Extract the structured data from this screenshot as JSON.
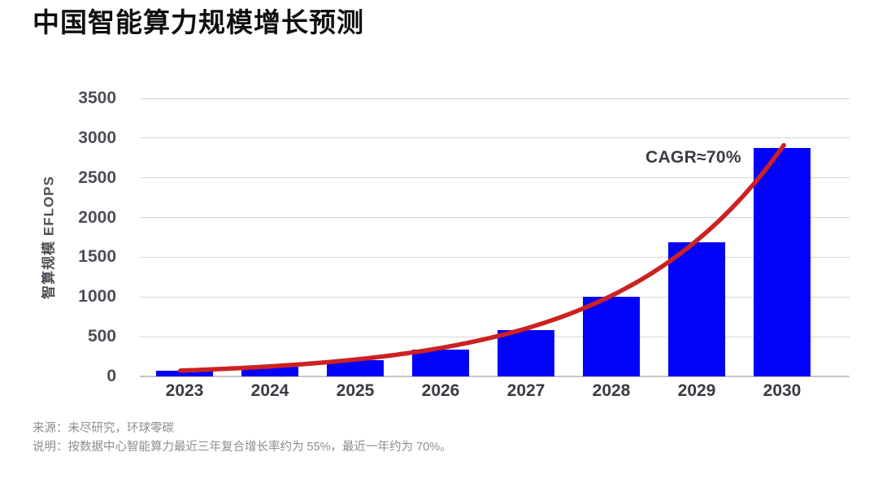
{
  "title": "中国智能算力规模增长预测",
  "chart_data": {
    "type": "bar",
    "categories": [
      "2023",
      "2024",
      "2025",
      "2026",
      "2027",
      "2028",
      "2029",
      "2030"
    ],
    "values": [
      70,
      120,
      200,
      340,
      580,
      1000,
      1690,
      2880
    ],
    "title": "中国智能算力规模增长预测",
    "xlabel": "",
    "ylabel": "智算规模 EFLOPS",
    "ylim": [
      0,
      3500
    ],
    "ytick_step": 500,
    "yticks": [
      0,
      500,
      1000,
      1500,
      2000,
      2500,
      3000,
      3500
    ],
    "grid": true,
    "legend": "none",
    "bar_color": "#0202fa",
    "annotation": "CAGR≈70%",
    "trend_line": {
      "type": "exponential",
      "label": "CAGR≈70%",
      "color": "#cd2121",
      "start_value": 75,
      "end_value": 2880
    }
  },
  "footer": {
    "source": "来源：未尽研究，环球零碳",
    "note": "说明：按数据中心智能算力最近三年复合增长率约为 55%，最近一年约为 70%。"
  },
  "colors": {
    "bar": "#0202fa",
    "trend": "#cd2121",
    "title_text": "#101010",
    "yaxis_text": "#4d4d57",
    "xaxis_text": "#3a3a44",
    "gridline": "#d7d7d7",
    "baseline": "#c6c6c6",
    "footer_text": "#8e8e8e",
    "background": "#ffffff"
  }
}
